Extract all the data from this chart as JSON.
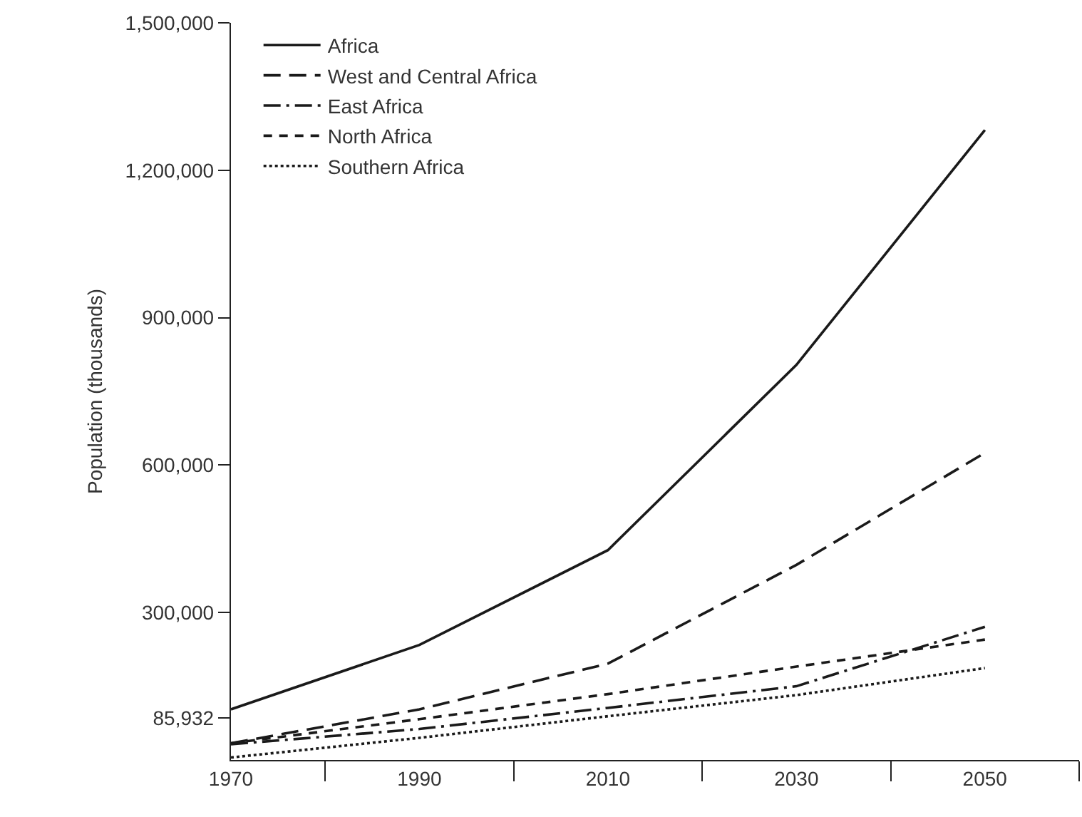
{
  "chart_data": {
    "type": "line",
    "ylabel": "Population (thousands)",
    "x": [
      1970,
      1990,
      2010,
      2030,
      2050
    ],
    "xlim": [
      1970,
      2060
    ],
    "xticks": [
      1970,
      {
        "value": 1980,
        "label": null
      },
      1990,
      {
        "value": 2000,
        "label": null
      },
      2010,
      {
        "value": 2020,
        "label": null
      },
      2030,
      {
        "value": 2040,
        "label": null
      },
      2050,
      {
        "value": 2060,
        "label": null
      }
    ],
    "ylim": [
      0,
      1500000
    ],
    "yticks": [
      {
        "value": 85932,
        "label": "85,932"
      },
      {
        "value": 300000,
        "label": "300,000"
      },
      {
        "value": 600000,
        "label": "600,000"
      },
      {
        "value": 900000,
        "label": "900,000"
      },
      {
        "value": 1200000,
        "label": "1,200,000"
      },
      {
        "value": 1500000,
        "label": "1,500,000"
      }
    ],
    "legend": "top left",
    "marker": "none",
    "series": [
      {
        "name": "Africa",
        "color": "#1a1a1a",
        "line_style": "solid",
        "values": [
          103000,
          234000,
          427000,
          804000,
          1282000
        ]
      },
      {
        "name": "West and Central Africa",
        "color": "#1a1a1a",
        "line_style": "longdash",
        "values": [
          34000,
          103000,
          196000,
          397000,
          625000
        ]
      },
      {
        "name": "East Africa",
        "color": "#1a1a1a",
        "line_style": "dashdot",
        "values": [
          32000,
          63000,
          106000,
          150000,
          271000
        ]
      },
      {
        "name": "North Africa",
        "color": "#1a1a1a",
        "line_style": "dashed",
        "values": [
          34000,
          83000,
          134000,
          190000,
          245000
        ]
      },
      {
        "name": "Southern Africa",
        "color": "#1a1a1a",
        "line_style": "dotted",
        "values": [
          5000,
          45000,
          89000,
          132000,
          187000
        ]
      }
    ]
  }
}
